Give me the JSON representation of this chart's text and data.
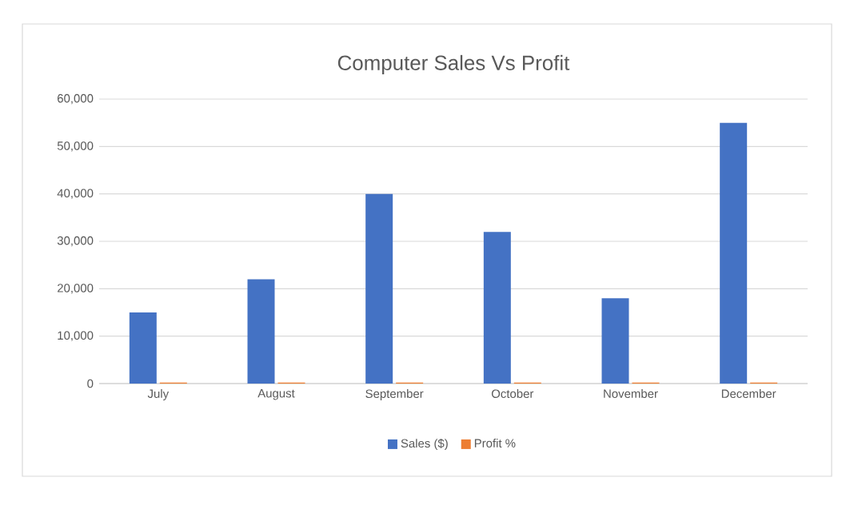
{
  "chart_data": {
    "type": "bar",
    "title": "Computer Sales Vs Profit",
    "categories": [
      "July",
      "August",
      "September",
      "October",
      "November",
      "December"
    ],
    "series": [
      {
        "name": "Sales ($)",
        "color": "#4472c4",
        "values": [
          15000,
          22000,
          40000,
          32000,
          18000,
          55000
        ]
      },
      {
        "name": "Profit %",
        "color": "#ed7d31",
        "values": [
          200,
          200,
          200,
          200,
          200,
          200
        ]
      }
    ],
    "ylim": [
      0,
      60000
    ],
    "yticks": [
      {
        "value": 0,
        "label": "0"
      },
      {
        "value": 10000,
        "label": "10,000"
      },
      {
        "value": 20000,
        "label": "20,000"
      },
      {
        "value": 30000,
        "label": "30,000"
      },
      {
        "value": 40000,
        "label": "40,000"
      },
      {
        "value": 50000,
        "label": "50,000"
      },
      {
        "value": 60000,
        "label": "60,000"
      }
    ],
    "grid": "y",
    "legend": "bottom"
  }
}
